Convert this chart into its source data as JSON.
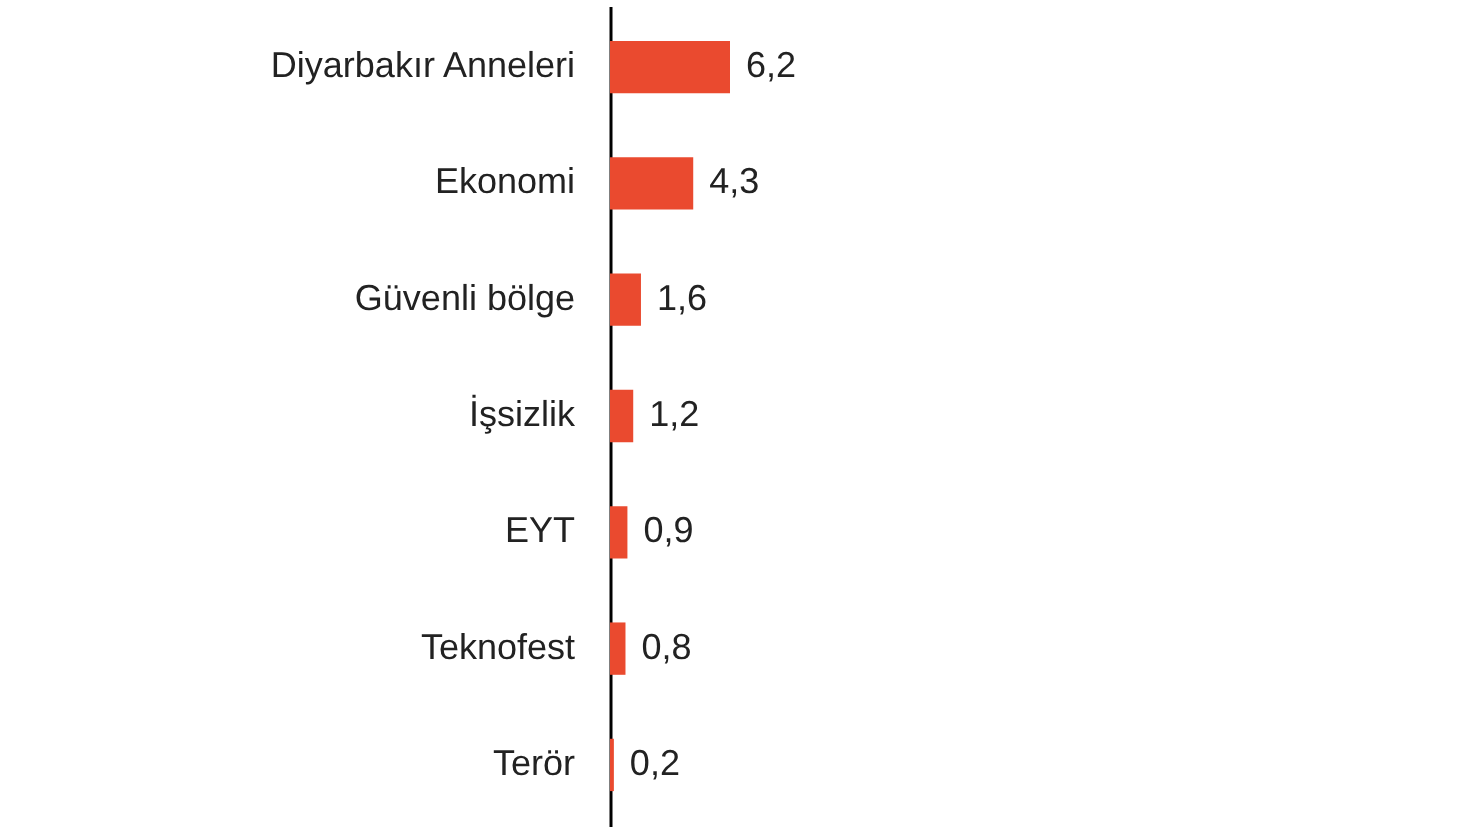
{
  "chart_data": {
    "type": "bar",
    "orientation": "horizontal",
    "categories": [
      "Diyarbakır Anneleri",
      "Ekonomi",
      "Güvenli bölge",
      "İşsizlik",
      "EYT",
      "Teknofest",
      "Terör"
    ],
    "values": [
      6.2,
      4.3,
      1.6,
      1.2,
      0.9,
      0.8,
      0.2
    ],
    "value_labels": [
      "6,2",
      "4,3",
      "1,6",
      "1,2",
      "0,9",
      "0,8",
      "0,2"
    ],
    "color": "#ea4a2f",
    "tick_labels": "y"
  }
}
